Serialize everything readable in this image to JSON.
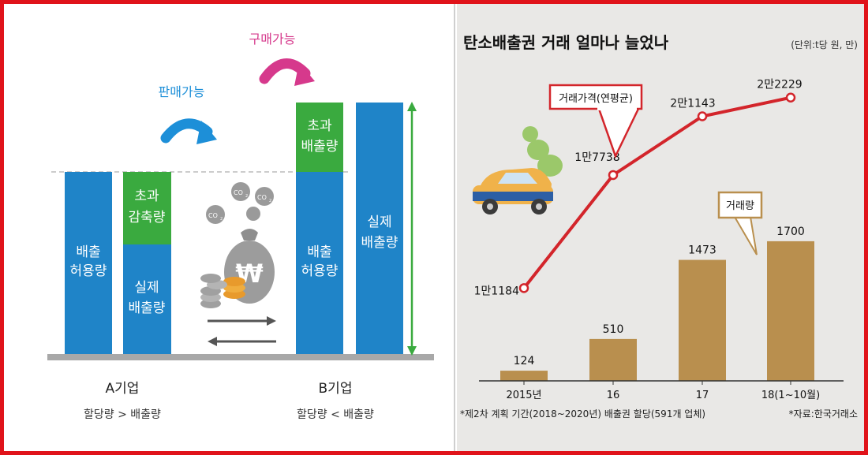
{
  "left_panel": {
    "sell_label": "판매가능",
    "buy_label": "구매가능",
    "a_allowance": [
      "배출",
      "허용량"
    ],
    "a_reduction": [
      "초과",
      "감축량"
    ],
    "a_actual": [
      "실제",
      "배출량"
    ],
    "b_excess": [
      "초과",
      "배출량"
    ],
    "b_allowance": [
      "배출",
      "허용량"
    ],
    "b_actual": [
      "실제",
      "배출량"
    ],
    "company_a": "A기업",
    "company_a_note": "할당량 > 배출량",
    "company_b": "B기업",
    "company_b_note": "할당량 < 배출량",
    "co2_label": "CO",
    "co2_sub": "2",
    "won_symbol": "₩",
    "colors": {
      "blue": "#1f84c8",
      "green": "#3aaa3f",
      "gray": "#a8a8a8",
      "arrow_blue": "#1d8fd8",
      "arrow_pink": "#d6398c"
    }
  },
  "chart_data": {
    "type": "bar+line",
    "title": "탄소배출권 거래 얼마나 늘었나",
    "unit_note": "(단위:t당 원, 만)",
    "categories": [
      "2015년",
      "16",
      "17",
      "18(1~10월)"
    ],
    "series": [
      {
        "name": "거래가격(연평균)",
        "type": "line",
        "values": [
          11184,
          17738,
          21143,
          22229
        ],
        "labels": [
          "1만1184",
          "1만7738",
          "2만1143",
          "2만2229"
        ],
        "color": "#d3252b",
        "ylim": [
          8000,
          24000
        ]
      },
      {
        "name": "거래량",
        "type": "bar",
        "values": [
          124,
          510,
          1473,
          1700
        ],
        "labels": [
          "124",
          "510",
          "1473",
          "1700"
        ],
        "color": "#b98f4e",
        "ylim": [
          0,
          2400
        ]
      }
    ],
    "footnote": "*제2차 계획 기간(2018~2020년) 배출권 할당(591개 업체)",
    "source": "*자료:한국거래소"
  }
}
